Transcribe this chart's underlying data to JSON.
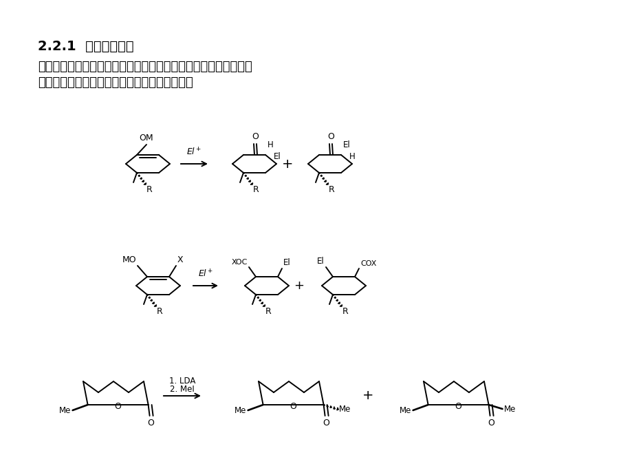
{
  "title": "2.2.1  环内手性传递",
  "body_text_line1": "原有不对称中心通过环共价键连接到烯醇的两个点，烯醇的几何构",
  "body_text_line2": "型保持不变并与不对称中心的诱导无直接关联。",
  "bg_color": "#ffffff",
  "text_color": "#000000",
  "title_fontsize": 14,
  "body_fontsize": 13
}
